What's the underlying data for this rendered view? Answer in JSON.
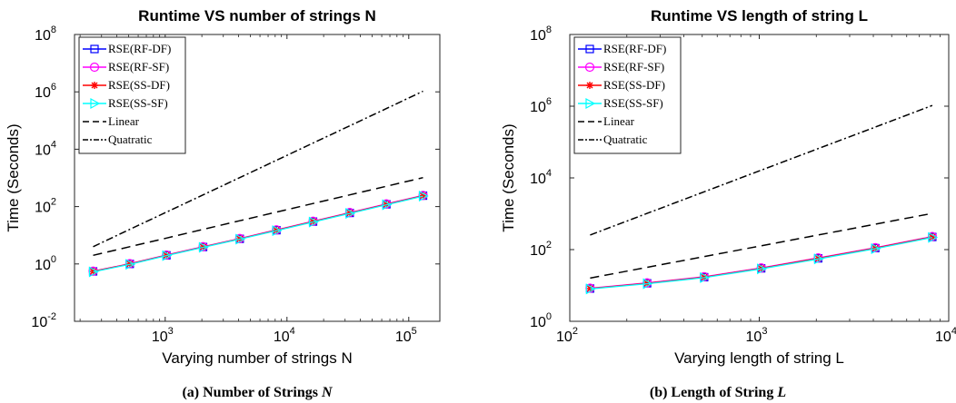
{
  "chart_data": [
    {
      "type": "line",
      "title": "Runtime VS number of strings N",
      "xlabel": "Varying number of strings N",
      "ylabel": "Time (Seconds)",
      "xscale": "log",
      "yscale": "log",
      "xlim": [
        180,
        180000
      ],
      "ylim": [
        0.01,
        100000000
      ],
      "xticks": [
        1000,
        10000,
        100000
      ],
      "yticks": [
        0.01,
        1,
        100,
        10000,
        1000000,
        100000000
      ],
      "xtick_labels": [
        {
          "base": "10",
          "exp": "3"
        },
        {
          "base": "10",
          "exp": "4"
        },
        {
          "base": "10",
          "exp": "5"
        }
      ],
      "ytick_labels": [
        {
          "base": "10",
          "exp": "-2"
        },
        {
          "base": "10",
          "exp": "0"
        },
        {
          "base": "10",
          "exp": "2"
        },
        {
          "base": "10",
          "exp": "4"
        },
        {
          "base": "10",
          "exp": "6"
        },
        {
          "base": "10",
          "exp": "8"
        }
      ],
      "legend_position": "top-left",
      "x": [
        256,
        512,
        1024,
        2048,
        4096,
        8192,
        16384,
        32768,
        65536,
        131072
      ],
      "series": [
        {
          "name": "RSE(RF-DF)",
          "color": "#0000ff",
          "marker": "square",
          "values": [
            0.55,
            1.0,
            2.0,
            3.9,
            7.5,
            15,
            30,
            60,
            120,
            240
          ]
        },
        {
          "name": "RSE(RF-SF)",
          "color": "#ff00ff",
          "marker": "circle",
          "values": [
            0.56,
            1.02,
            2.05,
            4.0,
            7.7,
            15.5,
            31,
            62,
            124,
            245
          ]
        },
        {
          "name": "RSE(SS-DF)",
          "color": "#ff0000",
          "marker": "asterisk",
          "values": [
            0.55,
            1.0,
            2.0,
            3.9,
            7.5,
            15,
            30,
            60,
            120,
            240
          ]
        },
        {
          "name": "RSE(SS-SF)",
          "color": "#00ffff",
          "marker": "triangle-right",
          "values": [
            0.53,
            0.97,
            1.95,
            3.8,
            7.3,
            14.5,
            29,
            58,
            116,
            232
          ]
        },
        {
          "name": "Linear",
          "color": "#000000",
          "dash": "10,6",
          "values": [
            2.0,
            4.0,
            8.0,
            16,
            32,
            64,
            128,
            256,
            512,
            1024
          ]
        },
        {
          "name": "Quatratic",
          "color": "#000000",
          "dash": "8,3,2,3",
          "values": [
            4.0,
            16,
            64,
            256,
            1024,
            4096,
            16384,
            65536,
            262144,
            1048576
          ]
        }
      ]
    },
    {
      "type": "line",
      "title": "Runtime VS length of string L",
      "xlabel": "Varying length of string L",
      "ylabel": "Time (Seconds)",
      "xscale": "log",
      "yscale": "log",
      "xlim": [
        100,
        10000
      ],
      "ylim": [
        1,
        100000000
      ],
      "xticks": [
        100,
        1000,
        10000
      ],
      "yticks": [
        1,
        100,
        10000,
        1000000,
        100000000
      ],
      "xtick_labels": [
        {
          "base": "10",
          "exp": "2"
        },
        {
          "base": "10",
          "exp": "3"
        },
        {
          "base": "10",
          "exp": "4"
        }
      ],
      "ytick_labels": [
        {
          "base": "10",
          "exp": "0"
        },
        {
          "base": "10",
          "exp": "2"
        },
        {
          "base": "10",
          "exp": "4"
        },
        {
          "base": "10",
          "exp": "6"
        },
        {
          "base": "10",
          "exp": "8"
        }
      ],
      "legend_position": "top-left",
      "x": [
        128,
        256,
        512,
        1024,
        2048,
        4096,
        8192
      ],
      "series": [
        {
          "name": "RSE(RF-DF)",
          "color": "#0000ff",
          "marker": "square",
          "values": [
            8.2,
            11.5,
            17,
            30,
            57,
            110,
            225
          ]
        },
        {
          "name": "RSE(RF-SF)",
          "color": "#ff00ff",
          "marker": "circle",
          "values": [
            8.4,
            11.8,
            17.5,
            31,
            59,
            113,
            232
          ]
        },
        {
          "name": "RSE(SS-DF)",
          "color": "#ff0000",
          "marker": "asterisk",
          "values": [
            8.2,
            11.5,
            17,
            30,
            57,
            110,
            225
          ]
        },
        {
          "name": "RSE(SS-SF)",
          "color": "#00ffff",
          "marker": "triangle-right",
          "values": [
            8.0,
            11.2,
            16.5,
            29,
            55,
            106,
            218
          ]
        },
        {
          "name": "Linear",
          "color": "#000000",
          "dash": "10,6",
          "values": [
            16,
            32,
            64,
            128,
            256,
            512,
            1024
          ]
        },
        {
          "name": "Quatratic",
          "color": "#000000",
          "dash": "8,3,2,3",
          "values": [
            256,
            1024,
            4096,
            16384,
            65536,
            262144,
            1048576
          ]
        }
      ]
    }
  ],
  "captions": [
    {
      "prefix": "(a) Number of Strings ",
      "var": "N"
    },
    {
      "prefix": "(b) Length of String ",
      "var": "L"
    }
  ]
}
